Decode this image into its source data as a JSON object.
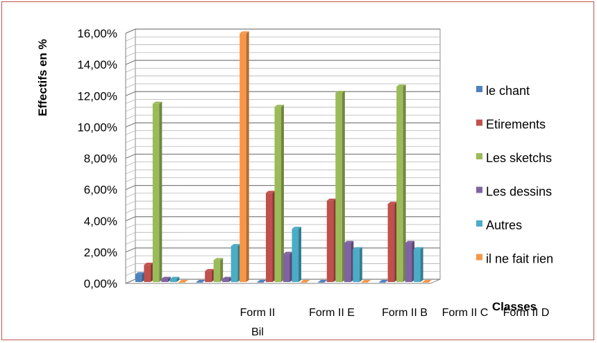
{
  "chart_data": {
    "type": "bar",
    "title": "",
    "xlabel": "Classes",
    "ylabel": "Effectifs en %",
    "ylim": [
      0,
      16
    ],
    "yticks": [
      "0,00%",
      "2,00%",
      "4,00%",
      "6,00%",
      "8,00%",
      "10,00%",
      "12,00%",
      "14,00%",
      "16,00%"
    ],
    "category_labels": [
      "Form II Bil",
      "Form II E",
      "Form II B",
      "Form II C",
      "Form II D"
    ],
    "series": [
      {
        "name": "le chant",
        "values": [
          0.5,
          0,
          0,
          0,
          0
        ]
      },
      {
        "name": "Etirements",
        "values": [
          1.1,
          0.7,
          5.7,
          5.2,
          5.0
        ]
      },
      {
        "name": "Les sketchs",
        "values": [
          11.4,
          1.4,
          11.2,
          12.1,
          12.5
        ]
      },
      {
        "name": "Les dessins",
        "values": [
          0.2,
          0.2,
          1.8,
          2.5,
          2.5
        ]
      },
      {
        "name": "Autres",
        "values": [
          0.2,
          2.3,
          3.4,
          2.1,
          2.1
        ]
      },
      {
        "name": "il ne fait rien",
        "values": [
          0,
          15.9,
          0,
          0,
          0
        ]
      }
    ],
    "grid": true,
    "legend_position": "right",
    "colors": [
      "#4f81bd",
      "#c0504d",
      "#9bbb59",
      "#8064a2",
      "#4bacc6",
      "#f79646"
    ]
  }
}
